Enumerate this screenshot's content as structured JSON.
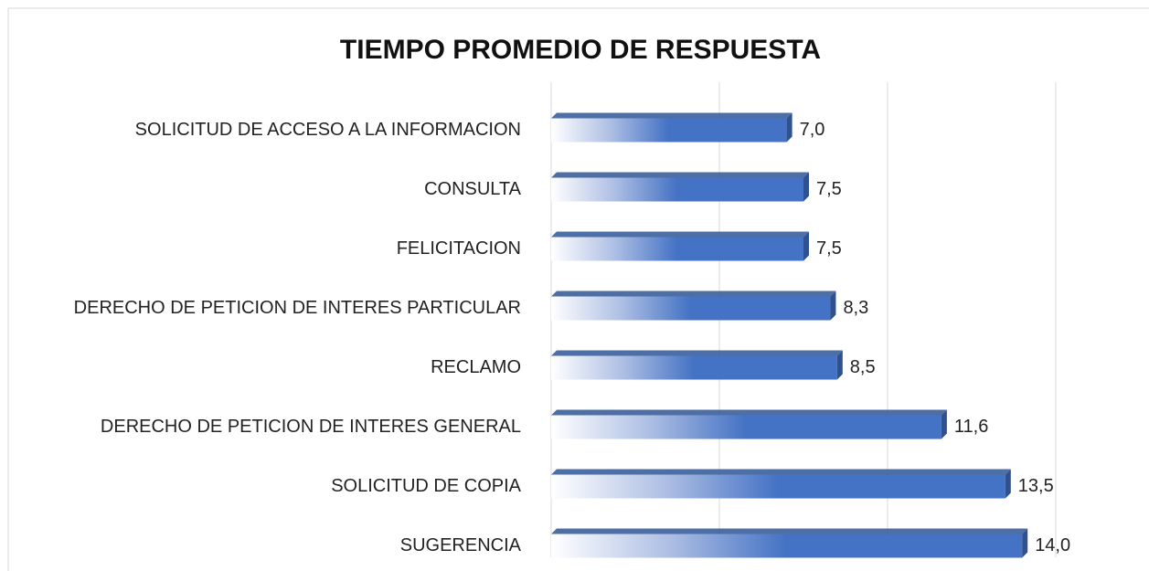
{
  "chart_data": {
    "type": "bar",
    "orientation": "horizontal",
    "title": "TIEMPO PROMEDIO DE RESPUESTA",
    "categories": [
      "SOLICITUD DE ACCESO A LA INFORMACION",
      "CONSULTA",
      "FELICITACION",
      "DERECHO DE PETICION DE INTERES PARTICULAR",
      "RECLAMO",
      "DERECHO DE PETICION DE INTERES GENERAL",
      "SOLICITUD DE COPIA",
      "SUGERENCIA"
    ],
    "values": [
      7.0,
      7.5,
      7.5,
      8.3,
      8.5,
      11.6,
      13.5,
      14.0
    ],
    "value_labels": [
      "7,0",
      "7,5",
      "7,5",
      "8,3",
      "8,5",
      "11,6",
      "13,5",
      "14,0"
    ],
    "color": "#4472c4",
    "xlim": [
      0,
      15
    ],
    "xticks": [
      0,
      5,
      10,
      15
    ],
    "grid": true
  }
}
